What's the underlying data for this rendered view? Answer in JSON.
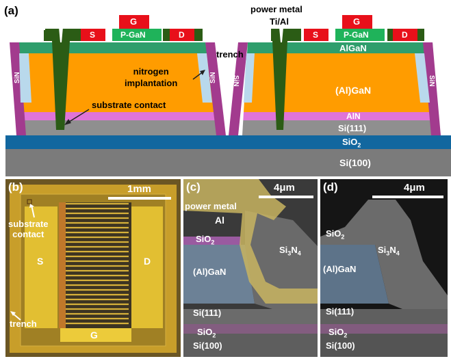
{
  "panel_a": {
    "label": "(a)",
    "gate": "G",
    "source": "S",
    "drain": "D",
    "pgan": "P-GaN",
    "algan": "AlGaN",
    "algan_bulk": "(Al)GaN",
    "aln": "AlN",
    "si111": "Si(111)",
    "sio2": "SiO",
    "sio2_sub": "2",
    "si100": "Si(100)",
    "sin": "SiN",
    "trench": "trench",
    "power_metal": "power metal",
    "ti_al": "Ti/Al",
    "nitrogen_implantation": "nitrogen\nimplantation",
    "substrate_contact": "substrate contact"
  },
  "panel_b": {
    "label": "(b)",
    "scale": "1mm",
    "substrate_contact": "substrate\ncontact",
    "source": "S",
    "drain": "D",
    "gate": "G",
    "trench": "trench"
  },
  "panel_c": {
    "label": "(c)",
    "scale": "4μm",
    "power_metal": "power metal",
    "al": "Al",
    "sio2": "SiO",
    "sio2_sub": "2",
    "si3n4": "Si",
    "si3n4_sub1": "3",
    "si3n4_n": "N",
    "si3n4_sub2": "4",
    "algan": "(Al)GaN",
    "si111": "Si(111)",
    "sio2_low": "SiO",
    "sio2_low_sub": "2",
    "si100": "Si(100)"
  },
  "panel_d": {
    "label": "(d)",
    "scale": "4μm",
    "sio2": "SiO",
    "sio2_sub": "2",
    "si3n4": "Si",
    "si3n4_sub1": "3",
    "si3n4_n": "N",
    "si3n4_sub2": "4",
    "algan": "(Al)GaN",
    "si111": "Si(111)",
    "sio2_low": "SiO",
    "sio2_low_sub": "2",
    "si100": "Si(100)"
  },
  "colors": {
    "gate_red": "#e8101a",
    "pgan_green": "#1fb35a",
    "algan_teal": "#2e9e6e",
    "gan_orange": "#ff9a00",
    "aln_pink": "#e070d8",
    "si111_gray": "#8c8c8c",
    "sio2_blue": "#0f6aa8",
    "si100_gray": "#7a7a7a",
    "sin_purple": "#a03c8c",
    "trench_lightblue": "#b8d8ea",
    "contact_darkgreen": "#2a5a14"
  }
}
